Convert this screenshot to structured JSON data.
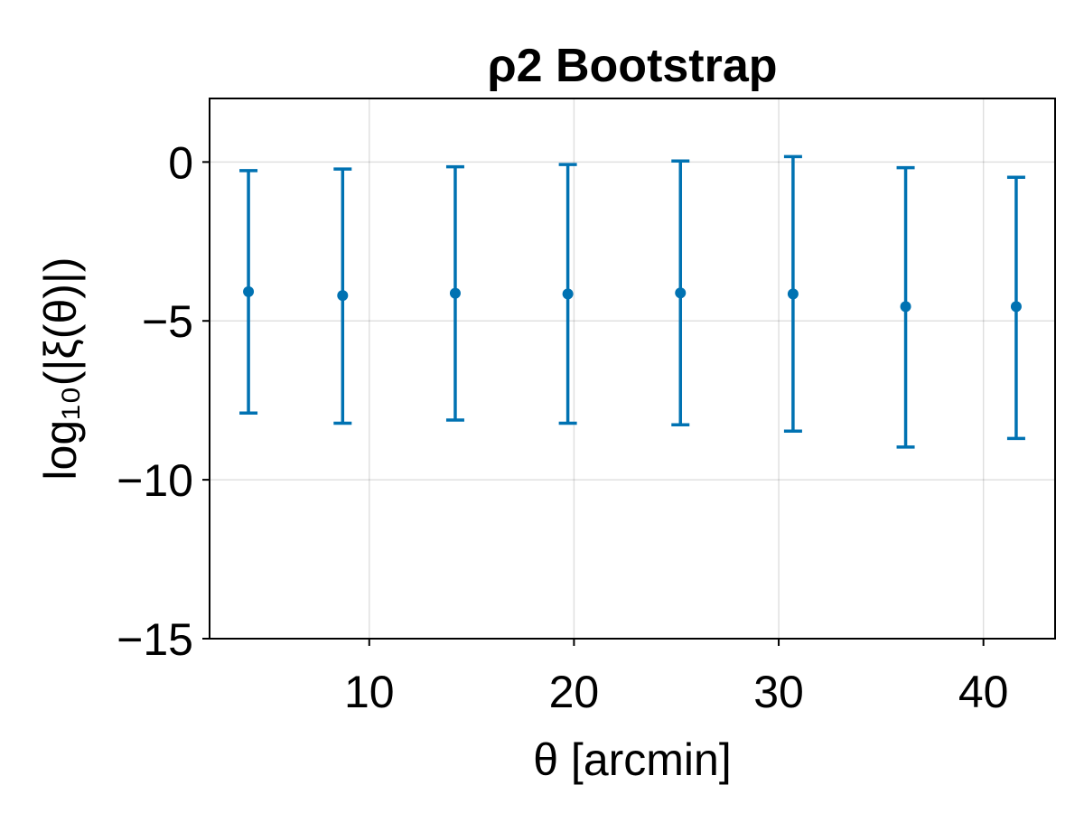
{
  "chart_data": {
    "type": "scatter",
    "title": "ρ2 Bootstrap",
    "xlabel": "θ [arcmin]",
    "ylabel": "log₁₀(|ξ(θ)|)",
    "xlim": [
      2.2,
      43.5
    ],
    "ylim": [
      -15,
      2
    ],
    "xticks": [
      10,
      20,
      30,
      40
    ],
    "yticks": [
      0,
      -5,
      -10,
      -15
    ],
    "xtick_labels": [
      "10",
      "20",
      "30",
      "40"
    ],
    "ytick_labels": [
      "0",
      "−5",
      "−10",
      "−15"
    ],
    "grid": true,
    "color": "#0072b2",
    "points": [
      {
        "x": 4.1,
        "y": -4.08,
        "lower": -7.9,
        "upper": -0.27
      },
      {
        "x": 8.7,
        "y": -4.2,
        "lower": -8.22,
        "upper": -0.22
      },
      {
        "x": 14.2,
        "y": -4.13,
        "lower": -8.12,
        "upper": -0.15
      },
      {
        "x": 19.7,
        "y": -4.15,
        "lower": -8.22,
        "upper": -0.08
      },
      {
        "x": 25.2,
        "y": -4.12,
        "lower": -8.27,
        "upper": 0.03
      },
      {
        "x": 30.7,
        "y": -4.15,
        "lower": -8.47,
        "upper": 0.17
      },
      {
        "x": 36.2,
        "y": -4.55,
        "lower": -8.97,
        "upper": -0.18
      },
      {
        "x": 41.6,
        "y": -4.55,
        "lower": -8.7,
        "upper": -0.48
      }
    ]
  }
}
